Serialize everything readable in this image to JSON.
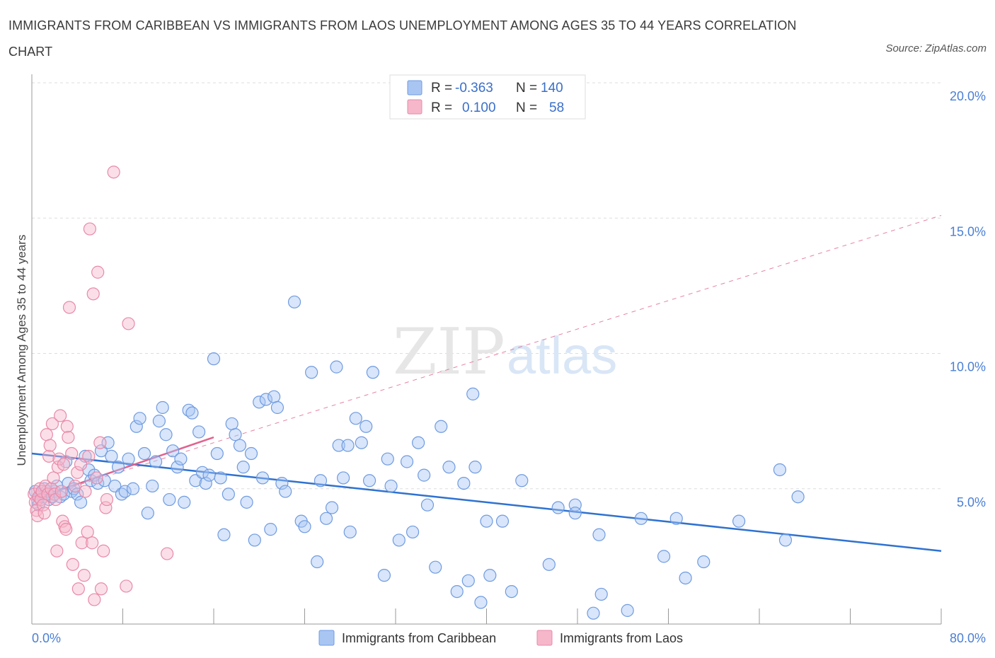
{
  "title": "IMMIGRANTS FROM CARIBBEAN VS IMMIGRANTS FROM LAOS UNEMPLOYMENT AMONG AGES 35 TO 44 YEARS CORRELATION CHART",
  "source": "Source: ZipAtlas.com",
  "watermark": {
    "zip": "ZIP",
    "atlas": "atlas"
  },
  "legend": {
    "r_label": "R =",
    "n_label": "N =",
    "rows": [
      {
        "r": "-0.363",
        "n": "140"
      },
      {
        "r": "0.100",
        "n": "58"
      }
    ]
  },
  "colors": {
    "caribbean_fill": "#a9c6f3",
    "caribbean_stroke": "#6f9be0",
    "caribbean_line": "#2f72d0",
    "laos_fill": "#f6b7cb",
    "laos_stroke": "#e88aa8",
    "laos_line": "#e0638f",
    "tick": "#4a7fd4",
    "grid": "#dddddd"
  },
  "chart_data": {
    "type": "scatter",
    "title": "IMMIGRANTS FROM CARIBBEAN VS IMMIGRANTS FROM LAOS UNEMPLOYMENT AMONG AGES 35 TO 44 YEARS CORRELATION CHART",
    "xlabel": "",
    "ylabel": "Unemployment Among Ages 35 to 44 years",
    "xlim": [
      0,
      80
    ],
    "ylim": [
      0,
      20
    ],
    "x_tick_labels": [
      "0.0%",
      "80.0%"
    ],
    "y_ticks": [
      5,
      10,
      15,
      20
    ],
    "y_tick_labels": [
      "5.0%",
      "10.0%",
      "15.0%",
      "20.0%"
    ],
    "grid": true,
    "legend_position": "top-center",
    "series": [
      {
        "name": "Immigrants from Caribbean",
        "R": -0.363,
        "N": 140,
        "trend": {
          "x": [
            0,
            80
          ],
          "y": [
            6.3,
            2.7
          ]
        },
        "points": [
          [
            0.3,
            4.9
          ],
          [
            0.5,
            4.6
          ],
          [
            0.6,
            4.4
          ],
          [
            0.8,
            4.8
          ],
          [
            1.0,
            4.7
          ],
          [
            1.1,
            5.0
          ],
          [
            1.3,
            4.9
          ],
          [
            1.5,
            4.6
          ],
          [
            1.8,
            4.7
          ],
          [
            2.0,
            4.9
          ],
          [
            2.2,
            5.1
          ],
          [
            2.5,
            4.7
          ],
          [
            2.8,
            4.8
          ],
          [
            3.0,
            6.0
          ],
          [
            3.2,
            5.2
          ],
          [
            3.5,
            4.9
          ],
          [
            3.7,
            5.0
          ],
          [
            4.0,
            4.8
          ],
          [
            4.3,
            4.5
          ],
          [
            4.7,
            6.2
          ],
          [
            5.0,
            5.7
          ],
          [
            5.2,
            5.3
          ],
          [
            5.5,
            5.5
          ],
          [
            5.8,
            5.2
          ],
          [
            6.1,
            6.4
          ],
          [
            6.4,
            5.3
          ],
          [
            6.7,
            6.7
          ],
          [
            7.0,
            6.2
          ],
          [
            7.3,
            5.1
          ],
          [
            7.6,
            5.8
          ],
          [
            7.9,
            4.8
          ],
          [
            8.2,
            4.9
          ],
          [
            8.5,
            6.1
          ],
          [
            8.9,
            5.0
          ],
          [
            9.2,
            7.3
          ],
          [
            9.5,
            7.6
          ],
          [
            9.9,
            6.3
          ],
          [
            10.2,
            4.1
          ],
          [
            10.6,
            5.1
          ],
          [
            10.9,
            6.0
          ],
          [
            11.2,
            7.5
          ],
          [
            11.5,
            8.0
          ],
          [
            11.8,
            7.0
          ],
          [
            12.1,
            4.6
          ],
          [
            12.4,
            6.4
          ],
          [
            12.8,
            5.8
          ],
          [
            13.1,
            6.1
          ],
          [
            13.4,
            4.5
          ],
          [
            13.8,
            7.9
          ],
          [
            14.1,
            7.8
          ],
          [
            14.4,
            5.3
          ],
          [
            14.7,
            7.1
          ],
          [
            15.0,
            5.6
          ],
          [
            15.3,
            5.2
          ],
          [
            15.6,
            5.5
          ],
          [
            16.0,
            9.8
          ],
          [
            16.3,
            6.3
          ],
          [
            16.6,
            5.4
          ],
          [
            16.9,
            3.3
          ],
          [
            17.3,
            4.8
          ],
          [
            17.6,
            7.4
          ],
          [
            17.9,
            7.0
          ],
          [
            18.3,
            6.6
          ],
          [
            18.6,
            5.8
          ],
          [
            18.9,
            4.5
          ],
          [
            19.3,
            6.3
          ],
          [
            19.6,
            3.1
          ],
          [
            20.0,
            8.2
          ],
          [
            20.3,
            5.4
          ],
          [
            20.6,
            8.3
          ],
          [
            21.0,
            3.5
          ],
          [
            21.3,
            8.4
          ],
          [
            21.6,
            8.0
          ],
          [
            22.0,
            5.2
          ],
          [
            22.3,
            4.9
          ],
          [
            23.1,
            11.9
          ],
          [
            23.7,
            3.8
          ],
          [
            24.0,
            3.6
          ],
          [
            24.6,
            9.3
          ],
          [
            25.1,
            2.3
          ],
          [
            25.4,
            5.3
          ],
          [
            25.9,
            3.9
          ],
          [
            26.4,
            4.3
          ],
          [
            26.8,
            9.5
          ],
          [
            27.0,
            6.6
          ],
          [
            27.4,
            5.4
          ],
          [
            27.8,
            6.6
          ],
          [
            28.0,
            3.4
          ],
          [
            28.5,
            7.6
          ],
          [
            29.0,
            6.7
          ],
          [
            29.4,
            7.3
          ],
          [
            29.7,
            5.3
          ],
          [
            30.0,
            9.3
          ],
          [
            31.0,
            1.8
          ],
          [
            31.3,
            6.1
          ],
          [
            31.6,
            5.1
          ],
          [
            32.3,
            3.1
          ],
          [
            33.0,
            6.0
          ],
          [
            33.5,
            3.4
          ],
          [
            34.0,
            6.7
          ],
          [
            34.5,
            5.5
          ],
          [
            34.8,
            4.4
          ],
          [
            35.5,
            2.1
          ],
          [
            36.0,
            7.3
          ],
          [
            36.7,
            5.8
          ],
          [
            37.4,
            1.2
          ],
          [
            38.0,
            5.2
          ],
          [
            38.4,
            1.6
          ],
          [
            38.8,
            8.5
          ],
          [
            39.0,
            5.8
          ],
          [
            39.5,
            0.8
          ],
          [
            40.0,
            3.8
          ],
          [
            40.3,
            1.8
          ],
          [
            41.4,
            3.8
          ],
          [
            42.2,
            1.2
          ],
          [
            43.1,
            5.3
          ],
          [
            45.5,
            2.2
          ],
          [
            46.3,
            4.3
          ],
          [
            47.8,
            4.4
          ],
          [
            47.8,
            4.1
          ],
          [
            49.4,
            0.4
          ],
          [
            49.9,
            3.3
          ],
          [
            50.1,
            1.1
          ],
          [
            52.4,
            0.5
          ],
          [
            53.6,
            3.9
          ],
          [
            55.6,
            2.5
          ],
          [
            56.7,
            3.9
          ],
          [
            57.5,
            1.7
          ],
          [
            59.1,
            2.3
          ],
          [
            62.2,
            3.8
          ],
          [
            65.8,
            5.7
          ],
          [
            66.3,
            3.1
          ],
          [
            67.4,
            4.7
          ]
        ]
      },
      {
        "name": "Immigrants from Laos",
        "R": 0.1,
        "N": 58,
        "trend": {
          "x": [
            0,
            16
          ],
          "y": [
            4.6,
            6.9
          ]
        },
        "trend_extended": {
          "x": [
            0,
            80
          ],
          "y": [
            4.6,
            15.1
          ]
        },
        "points": [
          [
            0.2,
            4.8
          ],
          [
            0.3,
            4.5
          ],
          [
            0.4,
            4.2
          ],
          [
            0.5,
            4.0
          ],
          [
            0.6,
            4.7
          ],
          [
            0.7,
            5.0
          ],
          [
            0.8,
            4.6
          ],
          [
            0.9,
            4.9
          ],
          [
            1.0,
            4.4
          ],
          [
            1.1,
            4.1
          ],
          [
            1.2,
            5.1
          ],
          [
            1.3,
            7.0
          ],
          [
            1.4,
            4.8
          ],
          [
            1.5,
            6.2
          ],
          [
            1.6,
            6.6
          ],
          [
            1.7,
            5.0
          ],
          [
            1.8,
            7.4
          ],
          [
            1.9,
            5.4
          ],
          [
            2.0,
            4.8
          ],
          [
            2.1,
            4.6
          ],
          [
            2.2,
            2.7
          ],
          [
            2.3,
            5.8
          ],
          [
            2.4,
            6.1
          ],
          [
            2.5,
            7.7
          ],
          [
            2.6,
            4.9
          ],
          [
            2.7,
            3.8
          ],
          [
            2.8,
            5.9
          ],
          [
            2.9,
            3.6
          ],
          [
            3.0,
            3.5
          ],
          [
            3.1,
            7.3
          ],
          [
            3.2,
            6.9
          ],
          [
            3.3,
            11.7
          ],
          [
            3.5,
            6.3
          ],
          [
            3.6,
            2.2
          ],
          [
            3.8,
            5.1
          ],
          [
            4.0,
            5.6
          ],
          [
            4.1,
            1.3
          ],
          [
            4.3,
            5.9
          ],
          [
            4.4,
            3.0
          ],
          [
            4.6,
            1.8
          ],
          [
            4.7,
            4.9
          ],
          [
            4.9,
            3.4
          ],
          [
            5.0,
            6.2
          ],
          [
            5.1,
            14.6
          ],
          [
            5.3,
            3.0
          ],
          [
            5.4,
            12.2
          ],
          [
            5.5,
            0.9
          ],
          [
            5.7,
            5.4
          ],
          [
            5.8,
            13.0
          ],
          [
            6.0,
            6.7
          ],
          [
            6.1,
            1.3
          ],
          [
            6.3,
            2.7
          ],
          [
            6.5,
            4.3
          ],
          [
            6.6,
            4.6
          ],
          [
            7.2,
            16.7
          ],
          [
            8.3,
            1.4
          ],
          [
            8.5,
            11.1
          ],
          [
            11.9,
            2.6
          ]
        ]
      }
    ]
  },
  "bottom_legend": [
    "Immigrants from Caribbean",
    "Immigrants from Laos"
  ]
}
